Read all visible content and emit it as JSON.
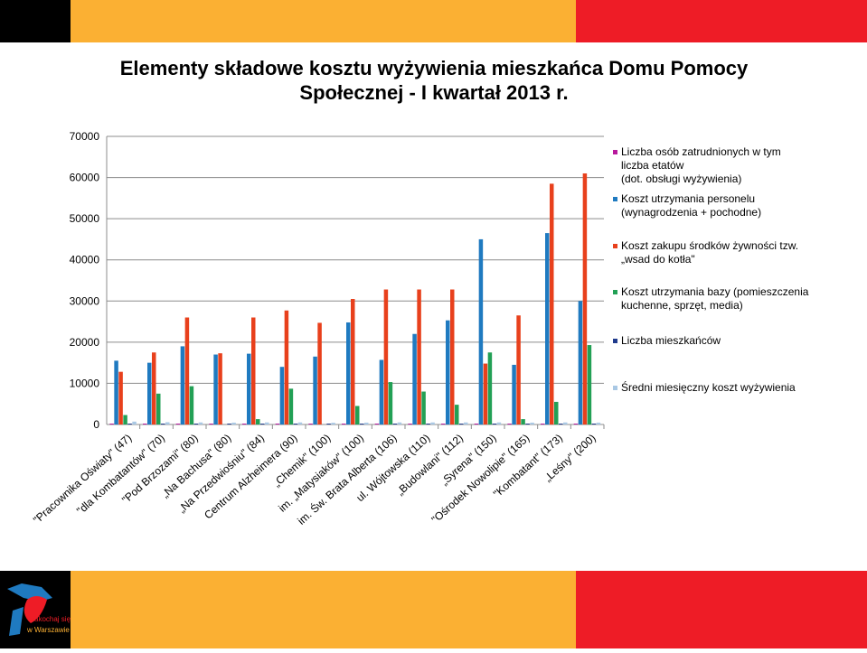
{
  "title_line1": "Elementy składowe kosztu wyżywienia mieszkańca Domu Pomocy",
  "title_line2": "Społecznej - I kwartał 2013 r.",
  "colors": {
    "band_black": "#000000",
    "band_orange": "#fbb033",
    "band_red": "#ee1c26"
  },
  "logo": {
    "text_line1": "zakochaj się",
    "text_line2": "w Warszawie"
  },
  "chart_data": {
    "type": "bar",
    "ylim": [
      0,
      70000
    ],
    "yticks": [
      "0",
      "10000",
      "20000",
      "30000",
      "40000",
      "50000",
      "60000",
      "70000"
    ],
    "yticks_values": [
      0,
      10000,
      20000,
      30000,
      40000,
      50000,
      60000,
      70000
    ],
    "grid": true,
    "legend_position": "right",
    "categories": [
      "\"Pracownika Oświaty\" (47)",
      "\"dla Kombatantów\" (70)",
      "\"Pod Brzozami\" (80)",
      "„Na Bachusa\" (80)",
      "„Na Przedwiośniu\" (84)",
      "Centrum Alzheimera (90)",
      "„Chemik\" (100)",
      "im. „Matysiaków\" (100)",
      "im. Św. Brata Alberta (106)",
      "ul. Wójtowska (110)",
      "„Budowlani\" (112)",
      "„Syrena\" (150)",
      "\"Ośrodek Nowolipie\" (165)",
      "\"Kombatant\" (173)",
      "„Leśny\" (200)"
    ],
    "series": [
      {
        "name": "Liczba osób zatrudnionych w tym liczba etatów (dot. obsługi wyżywienia)",
        "legend_lines": [
          "Liczba  osób zatrudnionych w tym",
          "liczba etatów",
          "(dot. obsługi wyżywienia)"
        ],
        "color": "#b7189c",
        "values": [
          5,
          4,
          6,
          4,
          5,
          5,
          6,
          5,
          7,
          6,
          6,
          8,
          7,
          8,
          9
        ]
      },
      {
        "name": "Koszt utrzymania personelu (wynagrodzenia + pochodne)",
        "legend_lines": [
          "Koszt utrzymania personelu",
          "(wynagrodzenia + pochodne)"
        ],
        "color": "#1f7ac0",
        "values": [
          15500,
          15000,
          19000,
          17000,
          17200,
          14000,
          16500,
          24800,
          15700,
          22000,
          25300,
          45000,
          14500,
          46500,
          30000
        ]
      },
      {
        "name": "Koszt zakupu środków żywności tzw. „wsad do kotła\"",
        "legend_lines": [
          "Koszt zakupu środków żywności tzw.",
          "„wsad do kotła\""
        ],
        "color": "#e8401c",
        "values": [
          12800,
          17500,
          26000,
          17300,
          26000,
          27700,
          24700,
          30500,
          32800,
          32800,
          32800,
          14800,
          26500,
          58500,
          61000
        ]
      },
      {
        "name": "Koszt utrzymania bazy (pomieszczenia kuchenne, sprzęt, media)",
        "legend_lines": [
          "Koszt utrzymania bazy (pomieszczenia",
          "kuchenne, sprzęt, media)"
        ],
        "color": "#22a055",
        "values": [
          2300,
          7500,
          9300,
          0,
          1300,
          8700,
          0,
          4500,
          10300,
          8000,
          4800,
          17500,
          1300,
          5500,
          19300
        ]
      },
      {
        "name": "Liczba mieszkańców",
        "legend_lines": [
          "Liczba mieszkańców"
        ],
        "color": "#1f3a8c",
        "values": [
          47,
          70,
          80,
          80,
          84,
          90,
          100,
          100,
          106,
          110,
          112,
          150,
          165,
          173,
          200
        ]
      },
      {
        "name": "Średni miesięczny koszt wyżywienia",
        "legend_lines": [
          "Średni miesięczny koszt wyżywienia"
        ],
        "color": "#a9c8e4",
        "values": [
          700,
          550,
          500,
          450,
          500,
          500,
          420,
          450,
          500,
          500,
          500,
          500,
          450,
          500,
          450
        ]
      }
    ]
  }
}
